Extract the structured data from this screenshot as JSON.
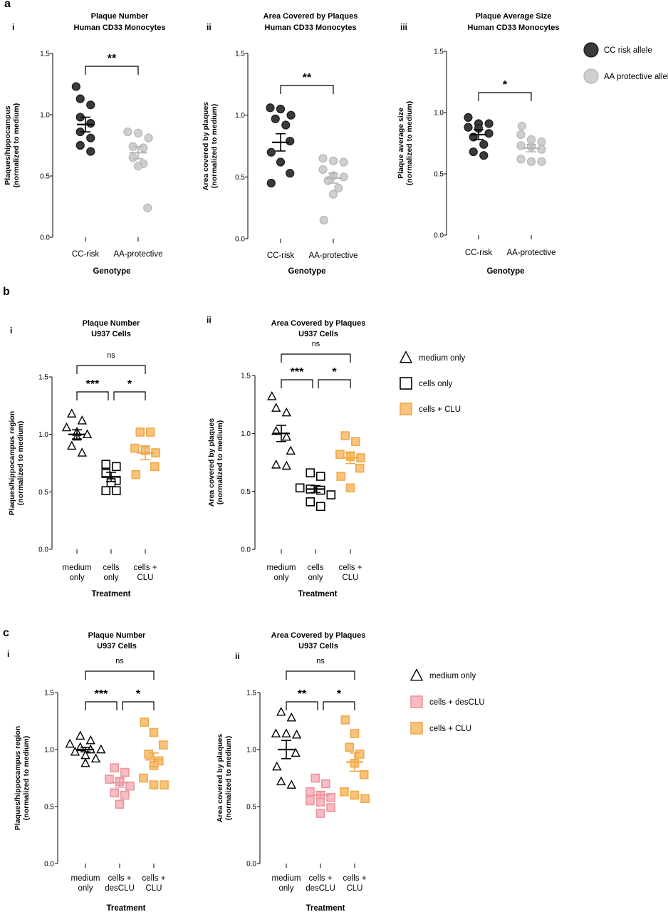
{
  "panels": {
    "a": {
      "letter": "a"
    },
    "b": {
      "letter": "b"
    },
    "c": {
      "letter": "c"
    }
  },
  "colors": {
    "cc": "#3a3a3a",
    "cc_stroke": "#1a1a1a",
    "aa": "#cfcfcf",
    "aa_stroke": "#b5b5b5",
    "clu": "#f8c37c",
    "clu_stroke": "#f0a94a",
    "desclu": "#f7bcc2",
    "desclu_stroke": "#ec959f",
    "open": "#ffffff",
    "open_stroke": "#000000"
  },
  "legends": {
    "a": [
      {
        "label": "CC risk allele",
        "marker": "circle",
        "fill": "#3a3a3a",
        "stroke": "#1a1a1a"
      },
      {
        "label": "AA protective allele",
        "marker": "circle",
        "fill": "#cfcfcf",
        "stroke": "#b5b5b5"
      }
    ],
    "b": [
      {
        "label": "medium only",
        "marker": "triangle",
        "fill": "#ffffff",
        "stroke": "#000000"
      },
      {
        "label": "cells only",
        "marker": "square",
        "fill": "#ffffff",
        "stroke": "#000000"
      },
      {
        "label": "cells + CLU",
        "marker": "square",
        "fill": "#f8c37c",
        "stroke": "#f0a94a"
      }
    ],
    "c": [
      {
        "label": "medium only",
        "marker": "triangle",
        "fill": "#ffffff",
        "stroke": "#000000"
      },
      {
        "label": "cells + desCLU",
        "marker": "square",
        "fill": "#f7bcc2",
        "stroke": "#ec959f"
      },
      {
        "label": "cells + CLU",
        "marker": "square",
        "fill": "#f8c37c",
        "stroke": "#f0a94a"
      }
    ]
  },
  "chart_data": [
    {
      "id": "a-i",
      "type": "scatter",
      "sublabel": "i",
      "title": [
        "Plaque Number",
        "Human CD33 Monocytes"
      ],
      "ylabel": [
        "Plaques/hippocampus",
        "(normalized to medium)"
      ],
      "xlabel": "Genotype",
      "ylim": [
        0,
        1.5
      ],
      "yticks": [
        "0.0",
        "0.5",
        "1.0",
        "1.5"
      ],
      "categories": [
        [
          "CC-risk"
        ],
        [
          "AA-protective"
        ]
      ],
      "series": [
        {
          "name": "CC risk allele",
          "marker": "circle",
          "fill": "#3a3a3a",
          "stroke": "#1a1a1a",
          "mean": 0.92,
          "sem": 0.06,
          "values": [
            1.23,
            1.13,
            1.08,
            0.98,
            0.93,
            0.86,
            0.81,
            0.75,
            0.7
          ]
        },
        {
          "name": "AA protective allele",
          "marker": "circle",
          "fill": "#cfcfcf",
          "stroke": "#b5b5b5",
          "mean": 0.69,
          "sem": 0.05,
          "values": [
            0.86,
            0.85,
            0.81,
            0.74,
            0.73,
            0.65,
            0.6,
            0.58,
            0.24
          ]
        }
      ],
      "sig": [
        {
          "from": 0,
          "to": 1,
          "label": "**"
        }
      ]
    },
    {
      "id": "a-ii",
      "type": "scatter",
      "sublabel": "ii",
      "title": [
        "Area Covered by Plaques",
        "Human CD33 Monocytes"
      ],
      "ylabel": [
        "Area covered by plaques",
        "(normalized to medium)"
      ],
      "xlabel": "Genotype",
      "ylim": [
        0,
        1.5
      ],
      "yticks": [
        "0.0",
        "0.5",
        "1.0",
        "1.5"
      ],
      "categories": [
        [
          "CC-risk"
        ],
        [
          "AA-protective"
        ]
      ],
      "series": [
        {
          "name": "CC risk allele",
          "marker": "circle",
          "fill": "#3a3a3a",
          "stroke": "#1a1a1a",
          "mean": 0.78,
          "sem": 0.07,
          "values": [
            1.06,
            1.05,
            1.0,
            0.97,
            0.92,
            0.79,
            0.7,
            0.62,
            0.53,
            0.45
          ]
        },
        {
          "name": "AA protective allele",
          "marker": "circle",
          "fill": "#cfcfcf",
          "stroke": "#b5b5b5",
          "mean": 0.49,
          "sem": 0.04,
          "values": [
            0.65,
            0.63,
            0.62,
            0.56,
            0.51,
            0.5,
            0.47,
            0.41,
            0.36,
            0.15
          ]
        }
      ],
      "sig": [
        {
          "from": 0,
          "to": 1,
          "label": "**"
        }
      ]
    },
    {
      "id": "a-iii",
      "type": "scatter",
      "sublabel": "iii",
      "title": [
        "Plaque Average Size",
        "Human CD33 Monocytes"
      ],
      "ylabel": [
        "Plaque average size",
        "(normalized to medium)"
      ],
      "xlabel": "Genotype",
      "ylim": [
        0,
        1.5
      ],
      "yticks": [
        "0.0",
        "0.5",
        "1.0",
        "1.5"
      ],
      "categories": [
        [
          "CC-risk"
        ],
        [
          "AA-protective"
        ]
      ],
      "series": [
        {
          "name": "CC risk allele",
          "marker": "circle",
          "fill": "#3a3a3a",
          "stroke": "#1a1a1a",
          "mean": 0.82,
          "sem": 0.04,
          "values": [
            0.96,
            0.91,
            0.91,
            0.88,
            0.87,
            0.83,
            0.8,
            0.74,
            0.68,
            0.65
          ]
        },
        {
          "name": "AA protective allele",
          "marker": "circle",
          "fill": "#cfcfcf",
          "stroke": "#b5b5b5",
          "mean": 0.71,
          "sem": 0.03,
          "values": [
            0.89,
            0.82,
            0.78,
            0.76,
            0.73,
            0.72,
            0.7,
            0.62,
            0.6,
            0.6
          ]
        }
      ],
      "sig": [
        {
          "from": 0,
          "to": 1,
          "label": "*"
        }
      ]
    },
    {
      "id": "b-i",
      "type": "scatter",
      "sublabel": "i",
      "title": [
        "Plaque Number",
        "U937 Cells"
      ],
      "ylabel": [
        "Plaques/hippocampus region",
        "(normalized to medium)"
      ],
      "xlabel": "Treatment",
      "ylim": [
        0,
        1.5
      ],
      "yticks": [
        "0.0",
        "0.5",
        "1.0",
        "1.5"
      ],
      "categories": [
        [
          "medium",
          "only"
        ],
        [
          "cells",
          "only"
        ],
        [
          "cells +",
          "CLU"
        ]
      ],
      "series": [
        {
          "name": "medium only",
          "marker": "triangle",
          "fill": "#ffffff",
          "stroke": "#000000",
          "mean": 1.0,
          "sem": 0.04,
          "values": [
            1.18,
            1.12,
            1.06,
            1.02,
            1.0,
            0.98,
            0.9,
            0.84
          ]
        },
        {
          "name": "cells only",
          "marker": "square",
          "fill": "#ffffff",
          "stroke": "#000000",
          "mean": 0.63,
          "sem": 0.04,
          "values": [
            0.74,
            0.72,
            0.66,
            0.6,
            0.58,
            0.51,
            0.51
          ]
        },
        {
          "name": "cells + CLU",
          "marker": "square",
          "fill": "#f8c37c",
          "stroke": "#f0a94a",
          "mean": 0.84,
          "sem": 0.06,
          "values": [
            1.02,
            1.02,
            0.88,
            0.86,
            0.84,
            0.72,
            0.65
          ]
        }
      ],
      "sig": [
        {
          "from": 0,
          "to": 2,
          "label": "ns"
        },
        {
          "from": 0,
          "to": 1,
          "label": "***"
        },
        {
          "from": 1,
          "to": 2,
          "label": "*"
        }
      ]
    },
    {
      "id": "b-ii",
      "type": "scatter",
      "sublabel": "ii",
      "title": [
        "Area Covered by Plaques",
        "U937 Cells"
      ],
      "ylabel": [
        "Area covered by plaques",
        "(normalized to medium)"
      ],
      "xlabel": "Treatment",
      "ylim": [
        0,
        1.5
      ],
      "yticks": [
        "0.0",
        "0.5",
        "1.0",
        "1.5"
      ],
      "categories": [
        [
          "medium",
          "only"
        ],
        [
          "cells",
          "only"
        ],
        [
          "cells +",
          "CLU"
        ]
      ],
      "series": [
        {
          "name": "medium only",
          "marker": "triangle",
          "fill": "#ffffff",
          "stroke": "#000000",
          "mean": 1.0,
          "sem": 0.07,
          "values": [
            1.32,
            1.22,
            1.18,
            1.02,
            0.97,
            0.85,
            0.73,
            0.72
          ]
        },
        {
          "name": "cells only",
          "marker": "square",
          "fill": "#ffffff",
          "stroke": "#000000",
          "mean": 0.52,
          "sem": 0.03,
          "values": [
            0.66,
            0.63,
            0.53,
            0.52,
            0.51,
            0.47,
            0.41,
            0.37
          ]
        },
        {
          "name": "cells + CLU",
          "marker": "square",
          "fill": "#f8c37c",
          "stroke": "#f0a94a",
          "mean": 0.79,
          "sem": 0.05,
          "values": [
            0.98,
            0.93,
            0.82,
            0.8,
            0.79,
            0.7,
            0.63,
            0.53
          ]
        }
      ],
      "sig": [
        {
          "from": 0,
          "to": 2,
          "label": "ns"
        },
        {
          "from": 0,
          "to": 1,
          "label": "***"
        },
        {
          "from": 1,
          "to": 2,
          "label": "*"
        }
      ]
    },
    {
      "id": "c-i",
      "type": "scatter",
      "sublabel": "i",
      "title": [
        "Plaque Number",
        "U937 Cells"
      ],
      "ylabel": [
        "Plaques/hippocampus region",
        "(normalized to medium)"
      ],
      "xlabel": "Treatment",
      "ylim": [
        0,
        1.5
      ],
      "yticks": [
        "0.0",
        "0.5",
        "1.0",
        "1.5"
      ],
      "categories": [
        [
          "medium",
          "only"
        ],
        [
          "cells +",
          "desCLU"
        ],
        [
          "cells +",
          "CLU"
        ]
      ],
      "series": [
        {
          "name": "medium only",
          "marker": "triangle",
          "fill": "#ffffff",
          "stroke": "#000000",
          "mean": 1.0,
          "sem": 0.02,
          "values": [
            1.12,
            1.08,
            1.05,
            1.02,
            1.0,
            1.0,
            0.98,
            0.95,
            0.92,
            0.88
          ]
        },
        {
          "name": "cells + desCLU",
          "marker": "square",
          "fill": "#f7bcc2",
          "stroke": "#ec959f",
          "mean": 0.71,
          "sem": 0.04,
          "values": [
            0.84,
            0.8,
            0.74,
            0.72,
            0.68,
            0.62,
            0.6,
            0.52
          ]
        },
        {
          "name": "cells + CLU",
          "marker": "square",
          "fill": "#f8c37c",
          "stroke": "#f0a94a",
          "mean": 0.91,
          "sem": 0.06,
          "values": [
            1.24,
            1.15,
            1.04,
            0.96,
            0.9,
            0.86,
            0.75,
            0.69,
            0.69
          ]
        }
      ],
      "sig": [
        {
          "from": 0,
          "to": 2,
          "label": "ns"
        },
        {
          "from": 0,
          "to": 1,
          "label": "***"
        },
        {
          "from": 1,
          "to": 2,
          "label": "*"
        }
      ]
    },
    {
      "id": "c-ii",
      "type": "scatter",
      "sublabel": "ii",
      "title": [
        "Area Covered by Plaques",
        "U937 Cells"
      ],
      "ylabel": [
        "Area covered by plaques",
        "(normalized to medium)"
      ],
      "xlabel": "Treatment",
      "ylim": [
        0,
        1.5
      ],
      "yticks": [
        "0.0",
        "0.5",
        "1.0",
        "1.5"
      ],
      "categories": [
        [
          "medium",
          "only"
        ],
        [
          "cells +",
          "desCLU"
        ],
        [
          "cells +",
          "CLU"
        ]
      ],
      "series": [
        {
          "name": "medium only",
          "marker": "triangle",
          "fill": "#ffffff",
          "stroke": "#000000",
          "mean": 1.0,
          "sem": 0.08,
          "values": [
            1.33,
            1.28,
            1.14,
            1.14,
            1.13,
            0.97,
            0.85,
            0.72,
            0.69
          ]
        },
        {
          "name": "cells + desCLU",
          "marker": "square",
          "fill": "#f7bcc2",
          "stroke": "#ec959f",
          "mean": 0.6,
          "sem": 0.03,
          "values": [
            0.75,
            0.7,
            0.63,
            0.6,
            0.58,
            0.55,
            0.54,
            0.49,
            0.44
          ]
        },
        {
          "name": "cells + CLU",
          "marker": "square",
          "fill": "#f8c37c",
          "stroke": "#f0a94a",
          "mean": 0.89,
          "sem": 0.08,
          "values": [
            1.26,
            1.14,
            1.02,
            0.96,
            0.88,
            0.78,
            0.63,
            0.6,
            0.57
          ]
        }
      ],
      "sig": [
        {
          "from": 0,
          "to": 2,
          "label": "ns"
        },
        {
          "from": 0,
          "to": 1,
          "label": "**"
        },
        {
          "from": 1,
          "to": 2,
          "label": "*"
        }
      ]
    }
  ]
}
